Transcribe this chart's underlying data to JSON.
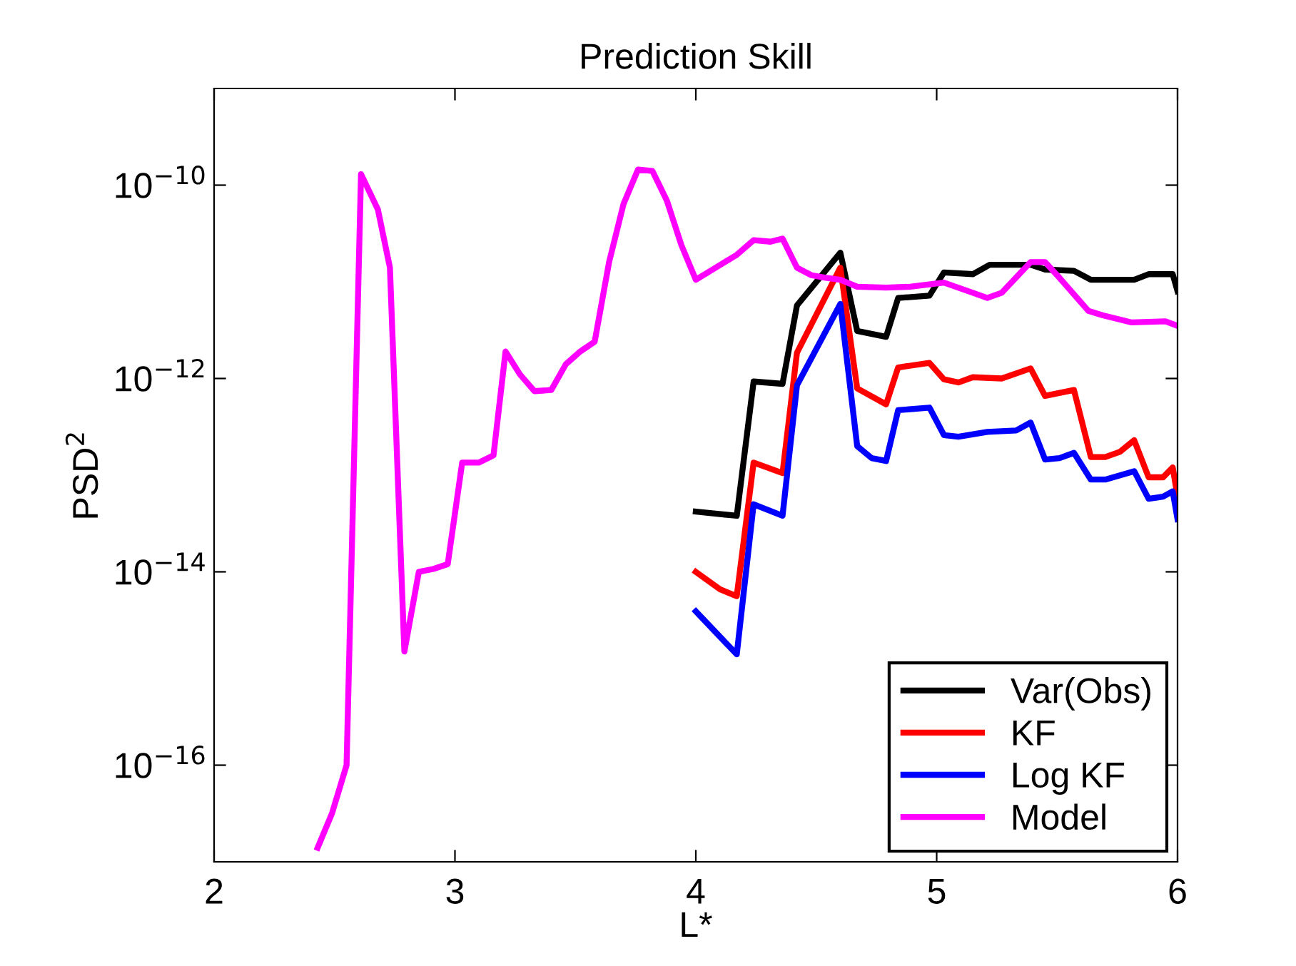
{
  "chart_data": {
    "type": "line",
    "title": "Prediction Skill",
    "xlabel": "L*",
    "ylabel": "PSD$^{2}$",
    "log": "y",
    "grid": false,
    "legend": "bottom right",
    "line_style": "solid",
    "marker": "none",
    "xlim": [
      2,
      6
    ],
    "xticks": [
      2,
      3,
      4,
      5,
      6
    ],
    "ylim": [
      1e-17,
      1e-09
    ],
    "yticks": [
      {
        "value": 1e-16,
        "label": "10$^{−16}$"
      },
      {
        "value": 1e-14,
        "label": "10$^{−14}$"
      },
      {
        "value": 1e-12,
        "label": "10$^{−12}$"
      },
      {
        "value": 1e-10,
        "label": "10$^{−10}$"
      }
    ],
    "series": [
      {
        "name": "Var(Obs)",
        "color": "#000000",
        "x": [
          4.0,
          4.17,
          4.24,
          4.36,
          4.42,
          4.6,
          4.67,
          4.79,
          4.84,
          4.97,
          5.03,
          5.15,
          5.22,
          5.39,
          5.45,
          5.57,
          5.64,
          5.82,
          5.88,
          5.98,
          6.0
        ],
        "values": [
          4.2e-14,
          3.8e-14,
          9.3e-13,
          8.8e-13,
          5.7e-12,
          2e-11,
          3.1e-12,
          2.7e-12,
          6.8e-12,
          7.2e-12,
          1.25e-11,
          1.2e-11,
          1.5e-11,
          1.5e-11,
          1.34e-11,
          1.3e-11,
          1.05e-11,
          1.05e-11,
          1.2e-11,
          1.2e-11,
          8e-12
        ]
      },
      {
        "name": "KF",
        "color": "#ff0000",
        "x": [
          4.0,
          4.1,
          4.17,
          4.24,
          4.36,
          4.42,
          4.6,
          4.67,
          4.79,
          4.84,
          4.97,
          5.03,
          5.09,
          5.15,
          5.27,
          5.39,
          5.45,
          5.57,
          5.64,
          5.7,
          5.76,
          5.82,
          5.88,
          5.94,
          5.98,
          6.0
        ],
        "values": [
          1e-14,
          6.6e-15,
          5.6e-15,
          1.35e-13,
          1.05e-13,
          1.85e-12,
          1.4e-11,
          7.9e-13,
          5.4e-13,
          1.3e-12,
          1.45e-12,
          9.8e-13,
          9.1e-13,
          1.03e-12,
          1e-12,
          1.27e-12,
          6.6e-13,
          7.6e-13,
          1.54e-13,
          1.54e-13,
          1.74e-13,
          2.3e-13,
          9.5e-14,
          9.5e-14,
          1.2e-13,
          6e-14
        ]
      },
      {
        "name": "Log KF",
        "color": "#0000ff",
        "x": [
          4.0,
          4.17,
          4.24,
          4.36,
          4.42,
          4.6,
          4.67,
          4.73,
          4.79,
          4.84,
          4.97,
          5.03,
          5.09,
          5.21,
          5.33,
          5.39,
          5.45,
          5.51,
          5.57,
          5.64,
          5.7,
          5.82,
          5.88,
          5.94,
          5.98,
          6.0
        ],
        "values": [
          3.9e-15,
          1.4e-15,
          5e-14,
          3.8e-14,
          8.5e-13,
          5.9e-12,
          2e-13,
          1.5e-13,
          1.4e-13,
          4.7e-13,
          5e-13,
          2.6e-13,
          2.5e-13,
          2.8e-13,
          2.9e-13,
          3.5e-13,
          1.45e-13,
          1.5e-13,
          1.7e-13,
          9e-14,
          9e-14,
          1.1e-13,
          5.7e-14,
          6e-14,
          6.8e-14,
          3.5e-14
        ]
      },
      {
        "name": "Model",
        "color": "#ff00ff",
        "x": [
          2.43,
          2.49,
          2.55,
          2.61,
          2.68,
          2.73,
          2.79,
          2.85,
          2.91,
          2.97,
          3.03,
          3.1,
          3.16,
          3.21,
          3.27,
          3.33,
          3.4,
          3.46,
          3.52,
          3.58,
          3.64,
          3.7,
          3.76,
          3.82,
          3.88,
          3.94,
          4.0,
          4.07,
          4.17,
          4.24,
          4.31,
          4.36,
          4.42,
          4.48,
          4.54,
          4.6,
          4.67,
          4.79,
          4.89,
          5.03,
          5.15,
          5.21,
          5.27,
          5.39,
          5.45,
          5.51,
          5.63,
          5.69,
          5.81,
          5.95,
          6.0
        ],
        "values": [
          1.4e-17,
          3.2e-17,
          1e-16,
          1.3e-10,
          5.6e-11,
          1.4e-11,
          1.5e-15,
          1e-14,
          1.07e-14,
          1.2e-14,
          1.35e-13,
          1.35e-13,
          1.6e-13,
          1.9e-12,
          1.1e-12,
          7.4e-13,
          7.6e-13,
          1.4e-12,
          1.9e-12,
          2.4e-12,
          1.6e-11,
          6.4e-11,
          1.45e-10,
          1.4e-10,
          6.9e-11,
          2.4e-11,
          1.05e-11,
          1.34e-11,
          1.9e-11,
          2.7e-11,
          2.6e-11,
          2.8e-11,
          1.4e-11,
          1.17e-11,
          1.1e-11,
          1.05e-11,
          8.9e-12,
          8.7e-12,
          8.9e-12,
          9.8e-12,
          7.7e-12,
          6.8e-12,
          7.7e-12,
          1.6e-11,
          1.6e-11,
          1.1e-11,
          5e-12,
          4.5e-12,
          3.8e-12,
          3.9e-12,
          3.5e-12
        ]
      }
    ]
  }
}
